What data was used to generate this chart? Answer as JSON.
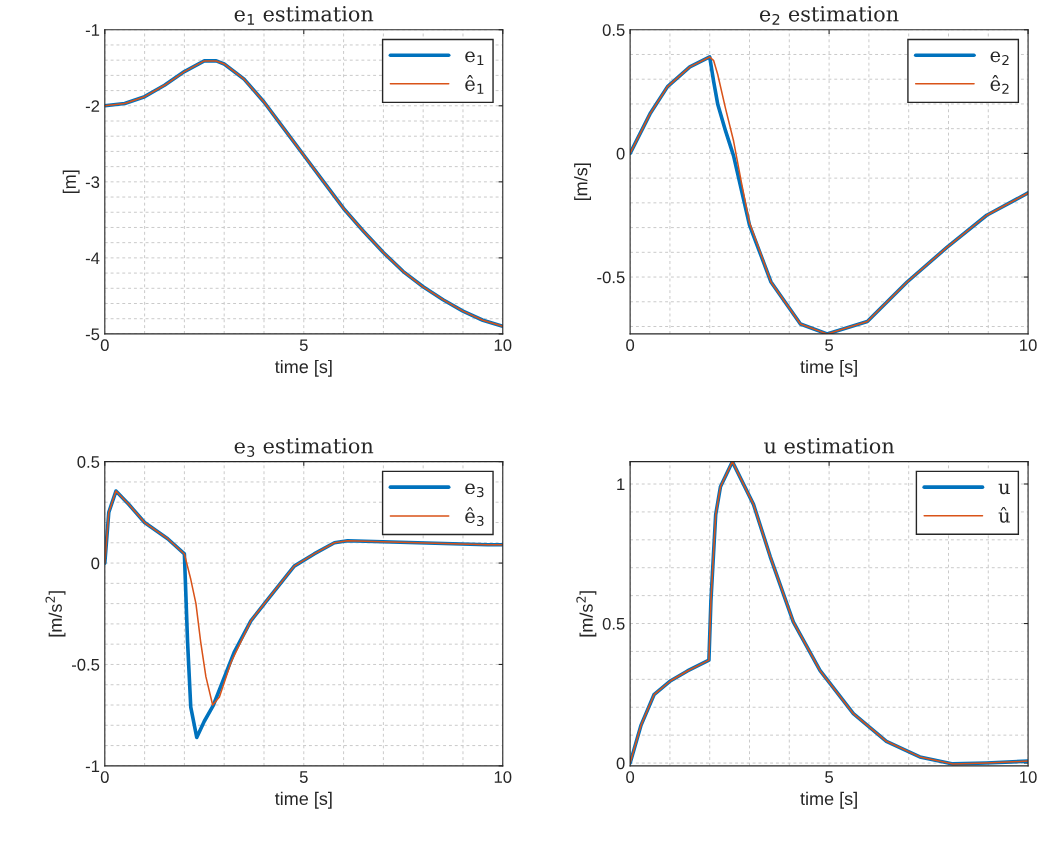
{
  "chart_data": [
    {
      "type": "line",
      "title": "e$_{1}$ estimation",
      "xlabel": "time [s]",
      "ylabel": "[m]",
      "xlim": [
        0,
        10
      ],
      "xticks": [
        0,
        5,
        10
      ],
      "ylim": [
        -5,
        -1
      ],
      "yticks": [
        -5,
        -4,
        -3,
        -2,
        -1
      ],
      "grid": true,
      "legend": "top right",
      "series": [
        {
          "name": "e$_{1}$",
          "color": "#0072bd",
          "x": [
            0,
            0.5,
            1,
            1.5,
            2,
            2.5,
            2.8,
            3,
            3.5,
            4,
            4.5,
            5,
            5.5,
            6,
            6.5,
            7,
            7.5,
            8,
            8.5,
            9,
            9.5,
            10
          ],
          "values": [
            -2,
            -1.97,
            -1.88,
            -1.73,
            -1.55,
            -1.41,
            -1.41,
            -1.45,
            -1.65,
            -1.95,
            -2.3,
            -2.65,
            -3.0,
            -3.35,
            -3.65,
            -3.93,
            -4.18,
            -4.38,
            -4.55,
            -4.7,
            -4.82,
            -4.9
          ]
        },
        {
          "name": "ê$_{1}$",
          "color": "#d95319",
          "x": [
            0,
            0.5,
            1,
            1.5,
            2,
            2.5,
            2.8,
            3,
            3.5,
            4,
            4.5,
            5,
            5.5,
            6,
            6.5,
            7,
            7.5,
            8,
            8.5,
            9,
            9.5,
            10
          ],
          "values": [
            -2,
            -1.97,
            -1.88,
            -1.73,
            -1.55,
            -1.41,
            -1.41,
            -1.45,
            -1.65,
            -1.95,
            -2.3,
            -2.65,
            -3.0,
            -3.35,
            -3.65,
            -3.93,
            -4.18,
            -4.38,
            -4.55,
            -4.7,
            -4.82,
            -4.9
          ]
        }
      ]
    },
    {
      "type": "line",
      "title": "e$_{2}$ estimation",
      "xlabel": "time [s]",
      "ylabel": "[m/s]",
      "xlim": [
        0,
        10
      ],
      "xticks": [
        0,
        5,
        10
      ],
      "ylim": [
        -0.73,
        0.5
      ],
      "yticks": [
        -0.5,
        0,
        0.5
      ],
      "grid": true,
      "legend": "top right",
      "series": [
        {
          "name": "e$_{2}$",
          "color": "#0072bd",
          "x": [
            0,
            0.5,
            0.94,
            1.5,
            2,
            2.1,
            2.2,
            2.4,
            2.6,
            2.8,
            3.0,
            3.54,
            4.28,
            4.95,
            5.96,
            6.96,
            7.96,
            8.96,
            10
          ],
          "values": [
            0,
            0.16,
            0.27,
            0.35,
            0.39,
            0.29,
            0.2,
            0.09,
            -0.01,
            -0.15,
            -0.29,
            -0.52,
            -0.69,
            -0.73,
            -0.68,
            -0.52,
            -0.38,
            -0.25,
            -0.16
          ]
        },
        {
          "name": "ê$_{2}$",
          "color": "#d95319",
          "x": [
            0,
            0.5,
            0.94,
            1.5,
            2,
            2.1,
            2.2,
            2.4,
            2.6,
            2.8,
            3.0,
            3.54,
            4.28,
            4.95,
            5.96,
            6.96,
            7.96,
            8.96,
            10
          ],
          "values": [
            0,
            0.16,
            0.27,
            0.35,
            0.39,
            0.375,
            0.32,
            0.18,
            0.05,
            -0.12,
            -0.28,
            -0.52,
            -0.69,
            -0.73,
            -0.68,
            -0.52,
            -0.38,
            -0.25,
            -0.16
          ]
        }
      ]
    },
    {
      "type": "line",
      "title": "e$_{3}$ estimation",
      "xlabel": "time [s]",
      "ylabel": "[m/s$^{2}$]",
      "xlim": [
        0,
        10
      ],
      "xticks": [
        0,
        5,
        10
      ],
      "ylim": [
        -1,
        0.5
      ],
      "yticks": [
        -1,
        -0.5,
        0,
        0.5
      ],
      "grid": true,
      "legend": "top right",
      "series": [
        {
          "name": "e$_{3}$",
          "color": "#0072bd",
          "x": [
            0,
            0.1,
            0.28,
            0.6,
            1.0,
            1.58,
            2.0,
            2.08,
            2.16,
            2.31,
            2.5,
            2.73,
            3.25,
            3.67,
            4.09,
            4.76,
            5.26,
            5.77,
            6.1,
            9.62,
            10
          ],
          "values": [
            0,
            0.25,
            0.355,
            0.29,
            0.2,
            0.12,
            0.045,
            -0.39,
            -0.71,
            -0.86,
            -0.78,
            -0.7,
            -0.44,
            -0.285,
            -0.18,
            -0.015,
            0.045,
            0.1,
            0.11,
            0.09,
            0.09
          ]
        },
        {
          "name": "ê$_{3}$",
          "color": "#d95319",
          "x": [
            0,
            0.1,
            0.28,
            0.6,
            1.0,
            1.58,
            2.0,
            2.16,
            2.29,
            2.41,
            2.54,
            2.71,
            2.88,
            3.17,
            3.67,
            4.09,
            4.76,
            5.26,
            5.77,
            6.1,
            9.62,
            10
          ],
          "values": [
            0,
            0.25,
            0.355,
            0.29,
            0.2,
            0.12,
            0.045,
            -0.08,
            -0.2,
            -0.39,
            -0.56,
            -0.7,
            -0.66,
            -0.49,
            -0.285,
            -0.18,
            -0.015,
            0.045,
            0.1,
            0.11,
            0.09,
            0.09
          ]
        }
      ]
    },
    {
      "type": "line",
      "title": "u estimation",
      "xlabel": "time [s]",
      "ylabel": "[m/s$^{2}$]",
      "xlim": [
        0,
        10
      ],
      "xticks": [
        0,
        5,
        10
      ],
      "ylim": [
        -0.01,
        1.08
      ],
      "yticks": [
        0,
        0.5,
        1
      ],
      "grid": true,
      "legend": "top right",
      "series": [
        {
          "name": "u",
          "color": "#0072bd",
          "x": [
            0,
            0.27,
            0.6,
            1.02,
            1.44,
            1.98,
            2.03,
            2.15,
            2.27,
            2.57,
            3.1,
            3.52,
            4.1,
            4.77,
            5.61,
            6.44,
            7.28,
            8.11,
            8.95,
            10
          ],
          "values": [
            0,
            0.134,
            0.245,
            0.295,
            0.33,
            0.369,
            0.58,
            0.89,
            0.99,
            1.08,
            0.927,
            0.74,
            0.506,
            0.332,
            0.177,
            0.078,
            0.022,
            -0.003,
            0,
            0.007
          ]
        },
        {
          "name": "û",
          "color": "#d95319",
          "x": [
            0,
            0.27,
            0.6,
            1.02,
            1.44,
            1.98,
            2.03,
            2.15,
            2.27,
            2.57,
            3.1,
            3.52,
            4.1,
            4.77,
            5.61,
            6.44,
            7.28,
            8.11,
            8.95,
            10
          ],
          "values": [
            0,
            0.134,
            0.245,
            0.295,
            0.33,
            0.369,
            0.58,
            0.89,
            0.99,
            1.08,
            0.927,
            0.74,
            0.506,
            0.332,
            0.177,
            0.078,
            0.022,
            -0.003,
            0,
            0.007
          ]
        }
      ]
    }
  ]
}
